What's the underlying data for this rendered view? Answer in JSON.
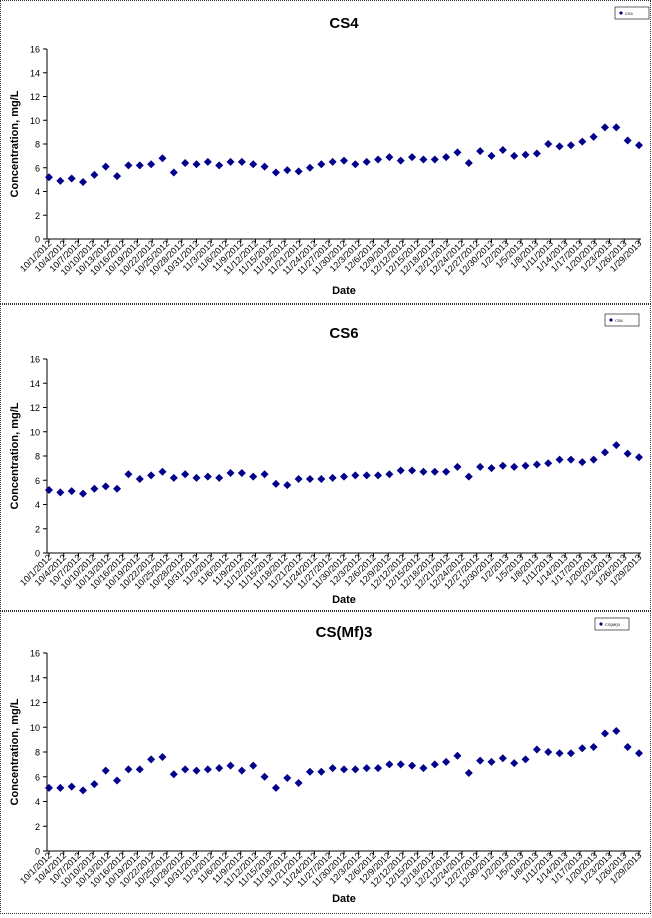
{
  "chart_data": [
    {
      "type": "scatter",
      "title": "CS4",
      "xlabel": "Date",
      "ylabel": "Concentration, mg/L",
      "ylim": [
        0,
        16
      ],
      "yticks": [
        0,
        2,
        4,
        6,
        8,
        10,
        12,
        14,
        16
      ],
      "xticks": [
        "10/1/2012",
        "10/4/2012",
        "10/7/2012",
        "10/10/2012",
        "10/13/2012",
        "10/16/2012",
        "10/19/2012",
        "10/22/2012",
        "10/25/2012",
        "10/28/2012",
        "10/31/2012",
        "11/3/2012",
        "11/6/2012",
        "11/9/2012",
        "11/12/2012",
        "11/15/2012",
        "11/18/2012",
        "11/21/2012",
        "11/24/2012",
        "11/27/2012",
        "11/30/2012",
        "12/3/2012",
        "12/6/2012",
        "12/9/2012",
        "12/12/2012",
        "12/15/2012",
        "12/18/2012",
        "12/21/2012",
        "12/24/2012",
        "12/27/2012",
        "12/30/2012",
        "1/2/2013",
        "1/5/2013",
        "1/8/2013",
        "1/11/2013",
        "1/14/2013",
        "1/17/2013",
        "1/20/2013",
        "1/23/2013",
        "1/26/2013",
        "1/29/2013"
      ],
      "legend": {
        "position": "top-right",
        "entries": [
          "CS4"
        ]
      },
      "grid": false,
      "marker_color": "#00008B",
      "series": [
        {
          "name": "CS4",
          "values": [
            5.2,
            4.9,
            5.1,
            4.8,
            5.4,
            6.1,
            5.3,
            6.2,
            6.2,
            6.3,
            6.8,
            5.6,
            6.4,
            6.3,
            6.5,
            6.2,
            6.5,
            6.5,
            6.3,
            6.1,
            5.6,
            5.8,
            5.7,
            6.0,
            6.3,
            6.5,
            6.6,
            6.3,
            6.5,
            6.7,
            6.9,
            6.6,
            6.9,
            6.7,
            6.7,
            6.9,
            7.3,
            6.4,
            7.4,
            7.0,
            7.5,
            7.0,
            7.1,
            7.2,
            8.0,
            7.8,
            7.9,
            8.2,
            8.6,
            9.4,
            9.4,
            8.3,
            7.9
          ]
        }
      ]
    },
    {
      "type": "scatter",
      "title": "CS6",
      "xlabel": "Date",
      "ylabel": "Concentration, mg/L",
      "ylim": [
        0,
        16
      ],
      "yticks": [
        0,
        2,
        4,
        6,
        8,
        10,
        12,
        14,
        16
      ],
      "xticks": [
        "10/1/2012",
        "10/4/2012",
        "10/7/2012",
        "10/10/2012",
        "10/13/2012",
        "10/16/2012",
        "10/19/2012",
        "10/22/2012",
        "10/25/2012",
        "10/28/2012",
        "10/31/2012",
        "11/3/2012",
        "11/6/2012",
        "11/9/2012",
        "11/12/2012",
        "11/15/2012",
        "11/18/2012",
        "11/21/2012",
        "11/24/2012",
        "11/27/2012",
        "11/30/2012",
        "12/3/2012",
        "12/6/2012",
        "12/9/2012",
        "12/12/2012",
        "12/15/2012",
        "12/18/2012",
        "12/21/2012",
        "12/24/2012",
        "12/27/2012",
        "12/30/2012",
        "1/2/2013",
        "1/5/2013",
        "1/8/2013",
        "1/11/2013",
        "1/14/2013",
        "1/17/2013",
        "1/20/2013",
        "1/23/2013",
        "1/26/2013",
        "1/29/2013"
      ],
      "legend": {
        "position": "top-right",
        "entries": [
          "CS6"
        ]
      },
      "grid": false,
      "marker_color": "#00008B",
      "series": [
        {
          "name": "CS6",
          "values": [
            5.2,
            5.0,
            5.1,
            4.9,
            5.3,
            5.5,
            5.3,
            6.5,
            6.1,
            6.4,
            6.7,
            6.2,
            6.5,
            6.2,
            6.3,
            6.2,
            6.6,
            6.6,
            6.3,
            6.5,
            5.7,
            5.6,
            6.1,
            6.1,
            6.1,
            6.2,
            6.3,
            6.4,
            6.4,
            6.4,
            6.5,
            6.8,
            6.8,
            6.7,
            6.7,
            6.7,
            7.1,
            6.3,
            7.1,
            7.0,
            7.2,
            7.1,
            7.2,
            7.3,
            7.4,
            7.7,
            7.7,
            7.5,
            7.7,
            8.3,
            8.9,
            8.2,
            7.9
          ]
        }
      ]
    },
    {
      "type": "scatter",
      "title": "CS(Mf)3",
      "xlabel": "Date",
      "ylabel": "Concentration, mg/L",
      "ylim": [
        0,
        16
      ],
      "yticks": [
        0,
        2,
        4,
        6,
        8,
        10,
        12,
        14,
        16
      ],
      "xticks": [
        "10/1/2012",
        "10/4/2012",
        "10/7/2012",
        "10/10/2012",
        "10/13/2012",
        "10/16/2012",
        "10/19/2012",
        "10/22/2012",
        "10/25/2012",
        "10/28/2012",
        "10/31/2012",
        "11/3/2012",
        "11/6/2012",
        "11/9/2012",
        "11/12/2012",
        "11/15/2012",
        "11/18/2012",
        "11/21/2012",
        "11/24/2012",
        "11/27/2012",
        "11/30/2012",
        "12/3/2012",
        "12/6/2012",
        "12/9/2012",
        "12/12/2012",
        "12/15/2012",
        "12/18/2012",
        "12/21/2012",
        "12/24/2012",
        "12/27/2012",
        "12/30/2012",
        "1/2/2013",
        "1/5/2013",
        "1/8/2013",
        "1/11/2013",
        "1/14/2013",
        "1/17/2013",
        "1/20/2013",
        "1/23/2013",
        "1/26/2013",
        "1/29/2013"
      ],
      "legend": {
        "position": "top-right",
        "entries": [
          "CS(Mf)3"
        ]
      },
      "grid": false,
      "marker_color": "#00008B",
      "series": [
        {
          "name": "CS(Mf)3",
          "values": [
            5.1,
            5.1,
            5.2,
            4.9,
            5.4,
            6.5,
            5.7,
            6.6,
            6.6,
            7.4,
            7.6,
            6.2,
            6.6,
            6.5,
            6.6,
            6.7,
            6.9,
            6.5,
            6.9,
            6.0,
            5.1,
            5.9,
            5.5,
            6.4,
            6.4,
            6.7,
            6.6,
            6.6,
            6.7,
            6.7,
            7.0,
            7.0,
            6.9,
            6.7,
            7.0,
            7.2,
            7.7,
            6.3,
            7.3,
            7.2,
            7.5,
            7.1,
            7.4,
            8.2,
            8.0,
            7.9,
            7.9,
            8.3,
            8.4,
            9.5,
            9.7,
            8.4,
            7.9
          ]
        }
      ]
    }
  ]
}
